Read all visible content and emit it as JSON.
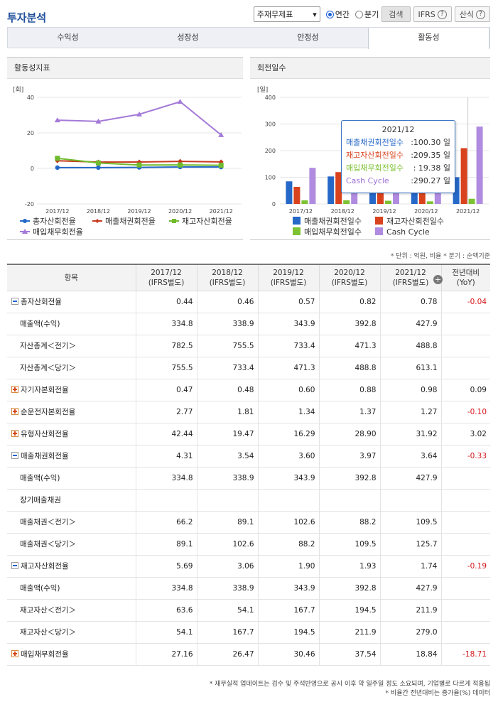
{
  "header": {
    "title": "투자분석",
    "select_value": "주재무제표",
    "radio_annual": "연간",
    "radio_quarter": "분기",
    "search_label": "검색",
    "ifrs_label": "IFRS",
    "formula_label": "산식"
  },
  "tabs": [
    "수익성",
    "성장성",
    "안정성",
    "활동성"
  ],
  "active_tab": 3,
  "left_chart": {
    "heading": "활동성지표",
    "unit": "[회]",
    "type": "line",
    "categories": [
      "2017/12",
      "2018/12",
      "2019/12",
      "2020/12",
      "2021/12"
    ],
    "y_ticks": [
      "40",
      "20",
      "0",
      "-20"
    ],
    "ylim": [
      -20,
      40
    ],
    "series": [
      {
        "name": "총자산회전율",
        "color": "#2568c8",
        "marker": "circle",
        "values": [
          0.44,
          0.46,
          0.57,
          0.82,
          0.78
        ]
      },
      {
        "name": "매출채권회전율",
        "color": "#c63a1e",
        "marker": "diamond",
        "values": [
          4.31,
          3.54,
          3.6,
          3.97,
          3.64
        ]
      },
      {
        "name": "재고자산회전율",
        "color": "#6fbb2d",
        "marker": "square",
        "values": [
          5.69,
          3.06,
          1.9,
          1.93,
          1.74
        ]
      },
      {
        "name": "매입채무회전율",
        "color": "#a47ad8",
        "marker": "triangle",
        "values": [
          27.16,
          26.47,
          30.46,
          37.54,
          18.84
        ]
      }
    ]
  },
  "right_chart": {
    "heading": "회전일수",
    "unit": "[일]",
    "type": "bar",
    "categories": [
      "2017/12",
      "2018/12",
      "2019/12",
      "2020/12",
      "2021/12"
    ],
    "y_ticks": [
      "400",
      "300",
      "200",
      "100",
      "0"
    ],
    "ylim": [
      0,
      400
    ],
    "series": [
      {
        "name": "매출채권회전일수",
        "color": "#2568c8",
        "values": [
          84.7,
          103.1,
          101.4,
          91.9,
          100.3
        ]
      },
      {
        "name": "재고자산회전일수",
        "color": "#d8431d",
        "values": [
          64.1,
          119.3,
          192.1,
          189.1,
          209.35
        ]
      },
      {
        "name": "매입채무회전일수",
        "color": "#7cc232",
        "values": [
          13.4,
          13.8,
          12.0,
          9.7,
          19.38
        ]
      },
      {
        "name": "Cash Cycle",
        "color": "#b08be0",
        "values": [
          135.4,
          208.6,
          281.5,
          271.3,
          290.27
        ]
      }
    ],
    "tooltip": {
      "title": "2021/12",
      "rows": [
        {
          "label": "매출채권회전일수",
          "value": ":100.30  일",
          "color": "#2568c8"
        },
        {
          "label": "재고자산회전일수",
          "value": ":209.35  일",
          "color": "#d8431d"
        },
        {
          "label": "매입채무회전일수",
          "value": ":  19.38  일",
          "color": "#7cc232"
        },
        {
          "label": "Cash Cycle",
          "value": ":290.27  일",
          "color": "#9b6fd4"
        }
      ]
    }
  },
  "unit_note": "* 단위 : 억원, 비율   * 분기 : 순액기준",
  "table": {
    "columns": [
      {
        "l1": "항목",
        "l2": ""
      },
      {
        "l1": "2017/12",
        "l2": "(IFRS별도)"
      },
      {
        "l1": "2018/12",
        "l2": "(IFRS별도)"
      },
      {
        "l1": "2019/12",
        "l2": "(IFRS별도)"
      },
      {
        "l1": "2020/12",
        "l2": "(IFRS별도)"
      },
      {
        "l1": "2021/12",
        "l2": "(IFRS별도)"
      },
      {
        "l1": "전년대비",
        "l2": "(YoY)"
      }
    ],
    "rows": [
      {
        "label": "총자산회전율",
        "toggle": "minus",
        "values": [
          "0.44",
          "0.46",
          "0.57",
          "0.82",
          "0.78"
        ],
        "yoy": "-0.04",
        "neg": true
      },
      {
        "label": "매출액(수익)",
        "sub": true,
        "values": [
          "334.8",
          "338.9",
          "343.9",
          "392.8",
          "427.9"
        ],
        "yoy": ""
      },
      {
        "label": "자산총계＜전기＞",
        "sub": true,
        "values": [
          "782.5",
          "755.5",
          "733.4",
          "471.3",
          "488.8"
        ],
        "yoy": ""
      },
      {
        "label": "자산총계＜당기＞",
        "sub": true,
        "values": [
          "755.5",
          "733.4",
          "471.3",
          "488.8",
          "613.1"
        ],
        "yoy": ""
      },
      {
        "label": "자기자본회전율",
        "toggle": "plus",
        "values": [
          "0.47",
          "0.48",
          "0.60",
          "0.88",
          "0.98"
        ],
        "yoy": "0.09"
      },
      {
        "label": "순운전자본회전율",
        "toggle": "plus",
        "values": [
          "2.77",
          "1.81",
          "1.34",
          "1.37",
          "1.27"
        ],
        "yoy": "-0.10",
        "neg": true
      },
      {
        "label": "유형자산회전율",
        "toggle": "plus",
        "values": [
          "42.44",
          "19.47",
          "16.29",
          "28.90",
          "31.92"
        ],
        "yoy": "3.02"
      },
      {
        "label": "매출채권회전율",
        "toggle": "minus",
        "values": [
          "4.31",
          "3.54",
          "3.60",
          "3.97",
          "3.64"
        ],
        "yoy": "-0.33",
        "neg": true
      },
      {
        "label": "매출액(수익)",
        "sub": true,
        "values": [
          "334.8",
          "338.9",
          "343.9",
          "392.8",
          "427.9"
        ],
        "yoy": ""
      },
      {
        "label": "장기매출채권",
        "sub": true,
        "values": [
          "",
          "",
          "",
          "",
          ""
        ],
        "yoy": ""
      },
      {
        "label": "매출채권＜전기＞",
        "sub": true,
        "values": [
          "66.2",
          "89.1",
          "102.6",
          "88.2",
          "109.5"
        ],
        "yoy": ""
      },
      {
        "label": "매출채권＜당기＞",
        "sub": true,
        "values": [
          "89.1",
          "102.6",
          "88.2",
          "109.5",
          "125.7"
        ],
        "yoy": ""
      },
      {
        "label": "재고자산회전율",
        "toggle": "minus",
        "values": [
          "5.69",
          "3.06",
          "1.90",
          "1.93",
          "1.74"
        ],
        "yoy": "-0.19",
        "neg": true
      },
      {
        "label": "매출액(수익)",
        "sub": true,
        "values": [
          "334.8",
          "338.9",
          "343.9",
          "392.8",
          "427.9"
        ],
        "yoy": ""
      },
      {
        "label": "재고자산＜전기＞",
        "sub": true,
        "values": [
          "63.6",
          "54.1",
          "167.7",
          "194.5",
          "211.9"
        ],
        "yoy": ""
      },
      {
        "label": "재고자산＜당기＞",
        "sub": true,
        "values": [
          "54.1",
          "167.7",
          "194.5",
          "211.9",
          "279.0"
        ],
        "yoy": ""
      },
      {
        "label": "매입채무회전율",
        "toggle": "plus",
        "values": [
          "27.16",
          "26.47",
          "30.46",
          "37.54",
          "18.84"
        ],
        "yoy": "-18.71",
        "neg": true
      }
    ]
  },
  "footer": [
    "* 재무실적 업데이트는 검수 및 주석반영으로 공시 이후 약 일주일 정도 소요되며, 기업별로 다르게 적용됩",
    "* 비율간 전년대비는 증가율(%) 데이터"
  ]
}
